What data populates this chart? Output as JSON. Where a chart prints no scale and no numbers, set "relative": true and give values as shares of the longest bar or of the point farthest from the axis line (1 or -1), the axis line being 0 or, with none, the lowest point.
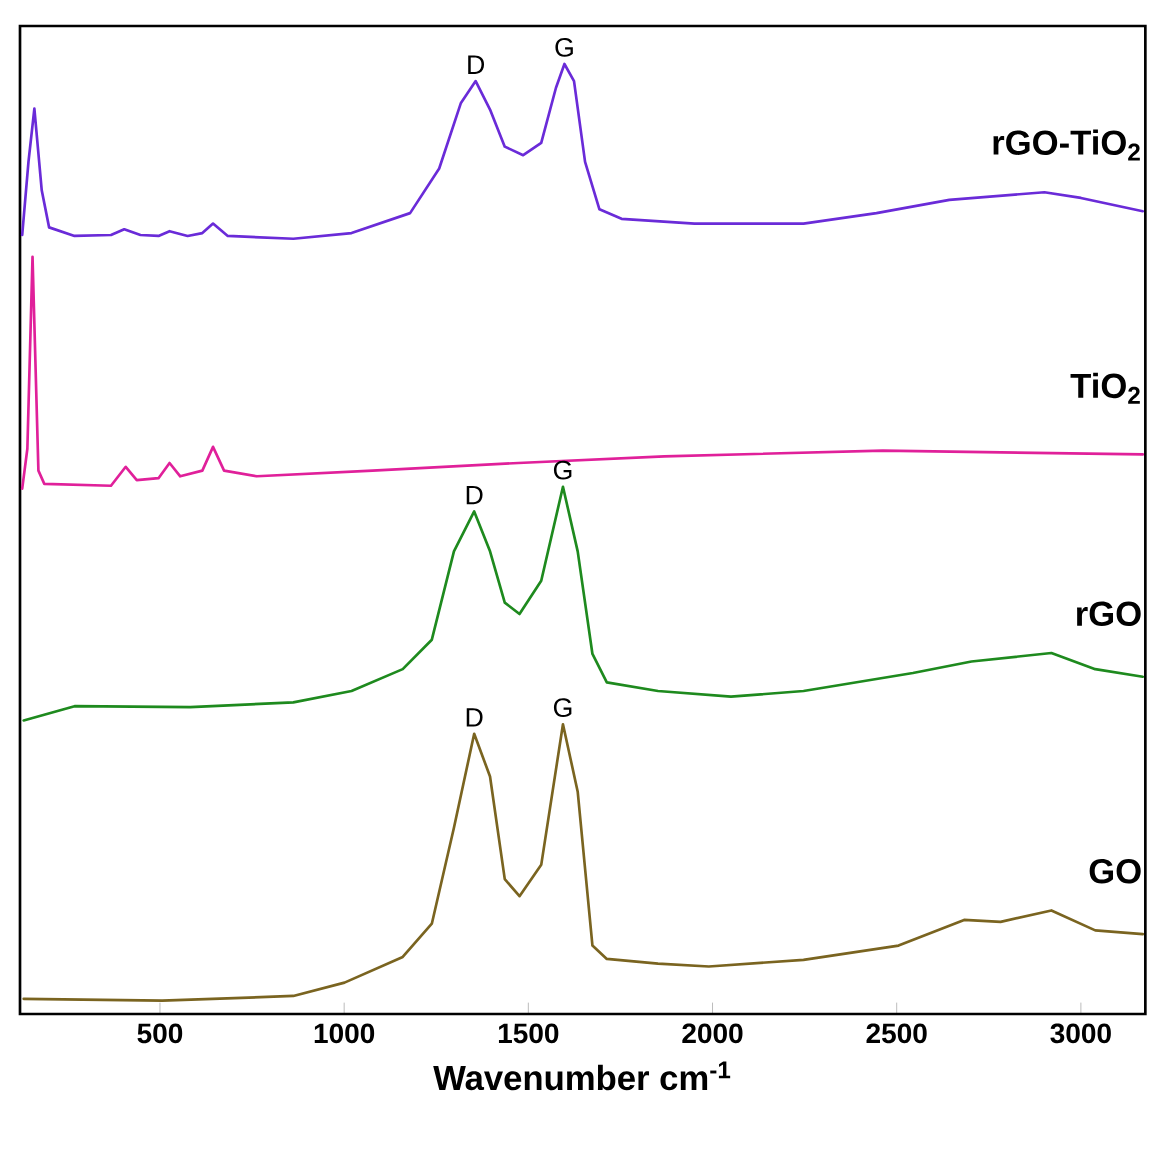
{
  "chart_data": {
    "type": "line",
    "relative": true,
    "xlabel": "Wavenumber cm$^{-1}$",
    "xlim": [
      120,
      3175
    ],
    "xticks": [
      500,
      1000,
      1500,
      2000,
      2500,
      3000
    ],
    "grid": false,
    "legend": false,
    "marker": "none",
    "line_style": "solid",
    "series": [
      {
        "name": "rGO-TiO$_{2}$",
        "color": "#6a2bd8",
        "x": [
          126,
          143,
          159,
          179,
          199,
          268,
          367,
          403,
          447,
          496,
          526,
          575,
          615,
          644,
          684,
          862,
          1020,
          1179,
          1258,
          1317,
          1357,
          1396,
          1436,
          1486,
          1535,
          1575,
          1598,
          1624,
          1654,
          1693,
          1753,
          1951,
          2247,
          2445,
          2643,
          2901,
          3000,
          3168
        ],
        "values": [
          0.82,
          0.897,
          0.953,
          0.867,
          0.828,
          0.819,
          0.82,
          0.826,
          0.82,
          0.819,
          0.824,
          0.819,
          0.822,
          0.832,
          0.819,
          0.816,
          0.822,
          0.843,
          0.89,
          0.959,
          0.982,
          0.952,
          0.913,
          0.904,
          0.917,
          0.975,
          1.0,
          0.982,
          0.897,
          0.847,
          0.837,
          0.832,
          0.832,
          0.843,
          0.857,
          0.865,
          0.859,
          0.845
        ]
      },
      {
        "name": "TiO$_{2}$",
        "color": "#e0209a",
        "x": [
          126,
          140,
          154,
          170,
          186,
          367,
          407,
          437,
          496,
          526,
          555,
          615,
          644,
          674,
          763,
          1077,
          1473,
          1869,
          2462,
          3168
        ],
        "values": [
          0.553,
          0.595,
          0.797,
          0.572,
          0.558,
          0.556,
          0.576,
          0.562,
          0.564,
          0.58,
          0.566,
          0.572,
          0.597,
          0.572,
          0.566,
          0.572,
          0.58,
          0.587,
          0.593,
          0.589
        ]
      },
      {
        "name": "rGO",
        "color": "#1e8a1e",
        "x": [
          130,
          268,
          582,
          862,
          1020,
          1159,
          1238,
          1298,
          1353,
          1396,
          1436,
          1476,
          1535,
          1594,
          1634,
          1674,
          1713,
          1852,
          2050,
          2247,
          2544,
          2703,
          2920,
          3039,
          3168
        ],
        "values": [
          0.309,
          0.324,
          0.323,
          0.328,
          0.34,
          0.363,
          0.394,
          0.487,
          0.529,
          0.487,
          0.433,
          0.421,
          0.456,
          0.555,
          0.487,
          0.379,
          0.349,
          0.34,
          0.334,
          0.34,
          0.359,
          0.371,
          0.38,
          0.363,
          0.355
        ]
      },
      {
        "name": "GO",
        "color": "#7a6420",
        "x": [
          130,
          506,
          862,
          1001,
          1159,
          1238,
          1298,
          1353,
          1396,
          1436,
          1476,
          1535,
          1594,
          1634,
          1674,
          1713,
          1852,
          1990,
          2247,
          2505,
          2683,
          2782,
          2920,
          3039,
          3168
        ],
        "values": [
          0.016,
          0.014,
          0.019,
          0.033,
          0.06,
          0.095,
          0.196,
          0.295,
          0.25,
          0.142,
          0.124,
          0.157,
          0.305,
          0.234,
          0.072,
          0.058,
          0.053,
          0.05,
          0.057,
          0.072,
          0.099,
          0.097,
          0.109,
          0.088,
          0.084
        ]
      }
    ],
    "annotations": [
      {
        "text": "D",
        "x": 1357,
        "y": 0.982
      },
      {
        "text": "G",
        "x": 1598,
        "y": 1.0
      },
      {
        "text": "D",
        "x": 1353,
        "y": 0.529
      },
      {
        "text": "G",
        "x": 1594,
        "y": 0.555
      },
      {
        "text": "D",
        "x": 1353,
        "y": 0.295
      },
      {
        "text": "G",
        "x": 1594,
        "y": 0.305
      }
    ]
  }
}
